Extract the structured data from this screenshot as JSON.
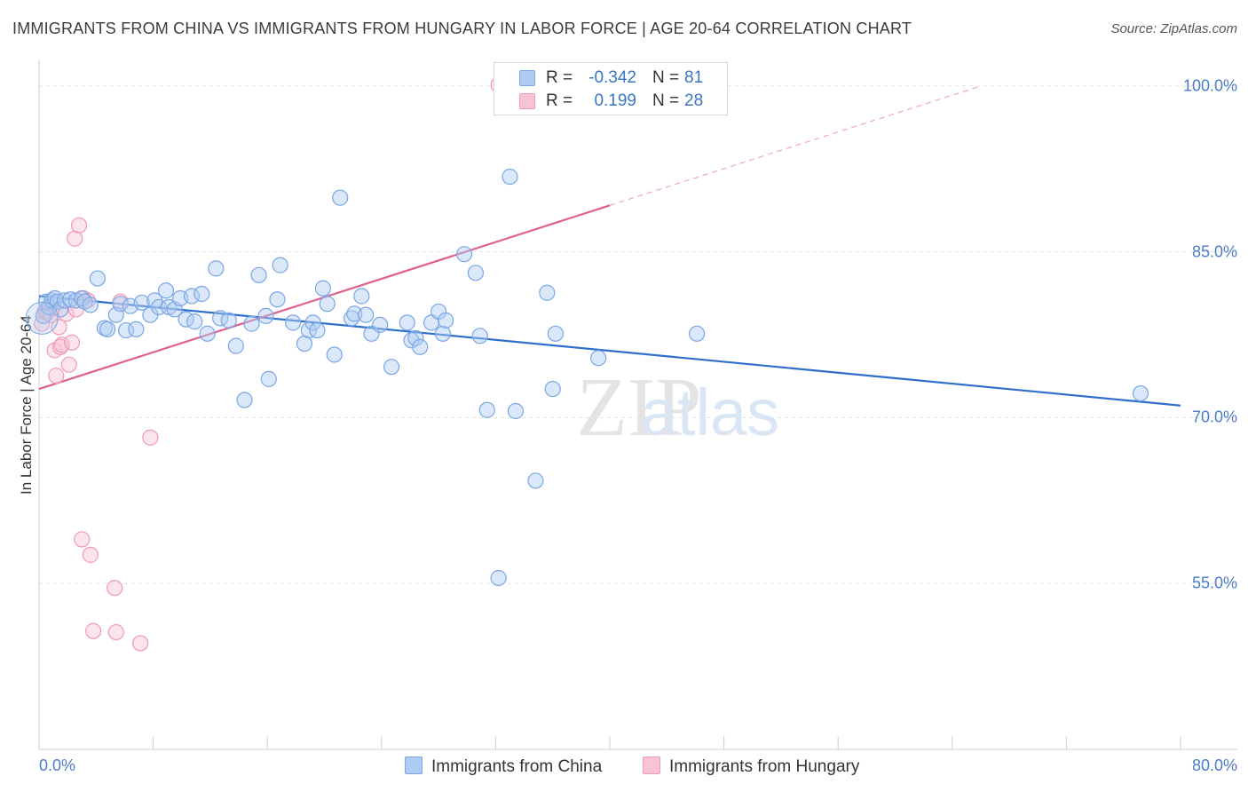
{
  "chart_data": {
    "type": "scatter",
    "title": "IMMIGRANTS FROM CHINA VS IMMIGRANTS FROM HUNGARY IN LABOR FORCE | AGE 20-64 CORRELATION CHART",
    "source": "Source: ZipAtlas.com",
    "xlabel": "",
    "ylabel": "In Labor Force | Age 20-64",
    "xlim": [
      0,
      80
    ],
    "ylim": [
      40,
      102
    ],
    "x_tick_labels": [
      "0.0%",
      "80.0%"
    ],
    "y_ticks": [
      {
        "value": 100,
        "label": "100.0%"
      },
      {
        "value": 85,
        "label": "85.0%"
      },
      {
        "value": 70,
        "label": "70.0%"
      },
      {
        "value": 55,
        "label": "55.0%"
      }
    ],
    "grid": true,
    "watermark": "ZIPatlas",
    "legend_position": "top-center",
    "series": [
      {
        "name": "Immigrants from China",
        "color": "#7aa6e6",
        "fill": "#aecbf2",
        "line_color": "#2f6fcc",
        "R": "-0.342",
        "N": "81",
        "trend": {
          "x": [
            0,
            80
          ],
          "y": [
            81.0,
            71.1
          ],
          "dash_from": null
        },
        "points": [
          [
            0.3,
            79.2
          ],
          [
            0.5,
            80.5
          ],
          [
            0.7,
            80.0
          ],
          [
            0.9,
            80.6
          ],
          [
            1.1,
            80.8
          ],
          [
            1.3,
            80.5
          ],
          [
            1.5,
            79.8
          ],
          [
            1.8,
            80.6
          ],
          [
            2.2,
            80.7
          ],
          [
            2.6,
            80.6
          ],
          [
            3.0,
            80.8
          ],
          [
            3.2,
            80.5
          ],
          [
            3.6,
            80.2
          ],
          [
            4.1,
            82.6
          ],
          [
            4.6,
            78.1
          ],
          [
            4.8,
            78.0
          ],
          [
            5.4,
            79.3
          ],
          [
            5.7,
            80.3
          ],
          [
            6.1,
            77.9
          ],
          [
            6.4,
            80.1
          ],
          [
            6.8,
            78.0
          ],
          [
            7.2,
            80.4
          ],
          [
            7.8,
            79.3
          ],
          [
            8.1,
            80.6
          ],
          [
            8.4,
            80.0
          ],
          [
            8.9,
            81.5
          ],
          [
            9.1,
            80.0
          ],
          [
            9.5,
            79.8
          ],
          [
            9.9,
            80.8
          ],
          [
            10.3,
            78.9
          ],
          [
            10.7,
            81.0
          ],
          [
            10.9,
            78.7
          ],
          [
            11.4,
            81.2
          ],
          [
            11.8,
            77.6
          ],
          [
            12.4,
            83.5
          ],
          [
            12.7,
            79.0
          ],
          [
            13.3,
            78.8
          ],
          [
            13.8,
            76.5
          ],
          [
            14.4,
            71.6
          ],
          [
            14.9,
            78.5
          ],
          [
            15.4,
            82.9
          ],
          [
            15.9,
            79.2
          ],
          [
            16.1,
            73.5
          ],
          [
            16.7,
            80.7
          ],
          [
            16.9,
            83.8
          ],
          [
            17.8,
            78.6
          ],
          [
            18.6,
            76.7
          ],
          [
            18.9,
            77.9
          ],
          [
            19.2,
            78.6
          ],
          [
            19.5,
            77.9
          ],
          [
            19.9,
            81.7
          ],
          [
            20.2,
            80.3
          ],
          [
            20.7,
            75.7
          ],
          [
            21.1,
            89.9
          ],
          [
            21.9,
            79.0
          ],
          [
            22.1,
            79.4
          ],
          [
            22.6,
            81.0
          ],
          [
            22.9,
            79.3
          ],
          [
            23.3,
            77.6
          ],
          [
            23.9,
            78.4
          ],
          [
            24.7,
            74.6
          ],
          [
            25.8,
            78.6
          ],
          [
            26.1,
            77.0
          ],
          [
            26.4,
            77.2
          ],
          [
            26.7,
            76.4
          ],
          [
            27.5,
            78.6
          ],
          [
            28.0,
            79.6
          ],
          [
            28.3,
            77.6
          ],
          [
            28.5,
            78.8
          ],
          [
            29.8,
            84.8
          ],
          [
            30.6,
            83.1
          ],
          [
            30.9,
            77.4
          ],
          [
            31.4,
            70.7
          ],
          [
            33.0,
            91.8
          ],
          [
            33.4,
            70.6
          ],
          [
            32.2,
            55.5
          ],
          [
            34.8,
            64.3
          ],
          [
            35.6,
            81.3
          ],
          [
            36.0,
            72.6
          ],
          [
            36.2,
            77.6
          ],
          [
            39.2,
            75.4
          ],
          [
            46.1,
            77.6
          ],
          [
            77.2,
            72.2
          ]
        ]
      },
      {
        "name": "Immigrants from Hungary",
        "color": "#f09ab5",
        "fill": "#f8c4d4",
        "line_color": "#e0608e",
        "R": "0.199",
        "N": "28",
        "trend": {
          "x": [
            0,
            66
          ],
          "y": [
            72.6,
            100.0
          ],
          "dash_from": 40
        },
        "points": [
          [
            0.2,
            78.5
          ],
          [
            0.4,
            79.6
          ],
          [
            0.5,
            79.8
          ],
          [
            0.6,
            79.5
          ],
          [
            0.7,
            80.0
          ],
          [
            0.8,
            79.3
          ],
          [
            0.9,
            79.9
          ],
          [
            1.0,
            80.4
          ],
          [
            1.1,
            76.1
          ],
          [
            1.2,
            73.8
          ],
          [
            1.4,
            78.2
          ],
          [
            1.5,
            76.4
          ],
          [
            1.6,
            76.6
          ],
          [
            1.9,
            79.4
          ],
          [
            2.1,
            74.8
          ],
          [
            2.3,
            76.8
          ],
          [
            2.5,
            86.2
          ],
          [
            2.6,
            79.8
          ],
          [
            2.8,
            87.4
          ],
          [
            3.1,
            80.8
          ],
          [
            3.4,
            80.6
          ],
          [
            3.0,
            59.0
          ],
          [
            3.6,
            57.6
          ],
          [
            3.8,
            50.7
          ],
          [
            5.3,
            54.6
          ],
          [
            5.4,
            50.6
          ],
          [
            5.7,
            80.5
          ],
          [
            7.1,
            49.6
          ],
          [
            7.8,
            68.2
          ],
          [
            32.2,
            100.1
          ]
        ]
      }
    ]
  },
  "legend": {
    "r_label": "R =",
    "n_label": "N =",
    "china_r": "-0.342",
    "china_n": "81",
    "hungary_r": "0.199",
    "hungary_n": "28",
    "china_name": "Immigrants from China",
    "hungary_name": "Immigrants from Hungary"
  }
}
